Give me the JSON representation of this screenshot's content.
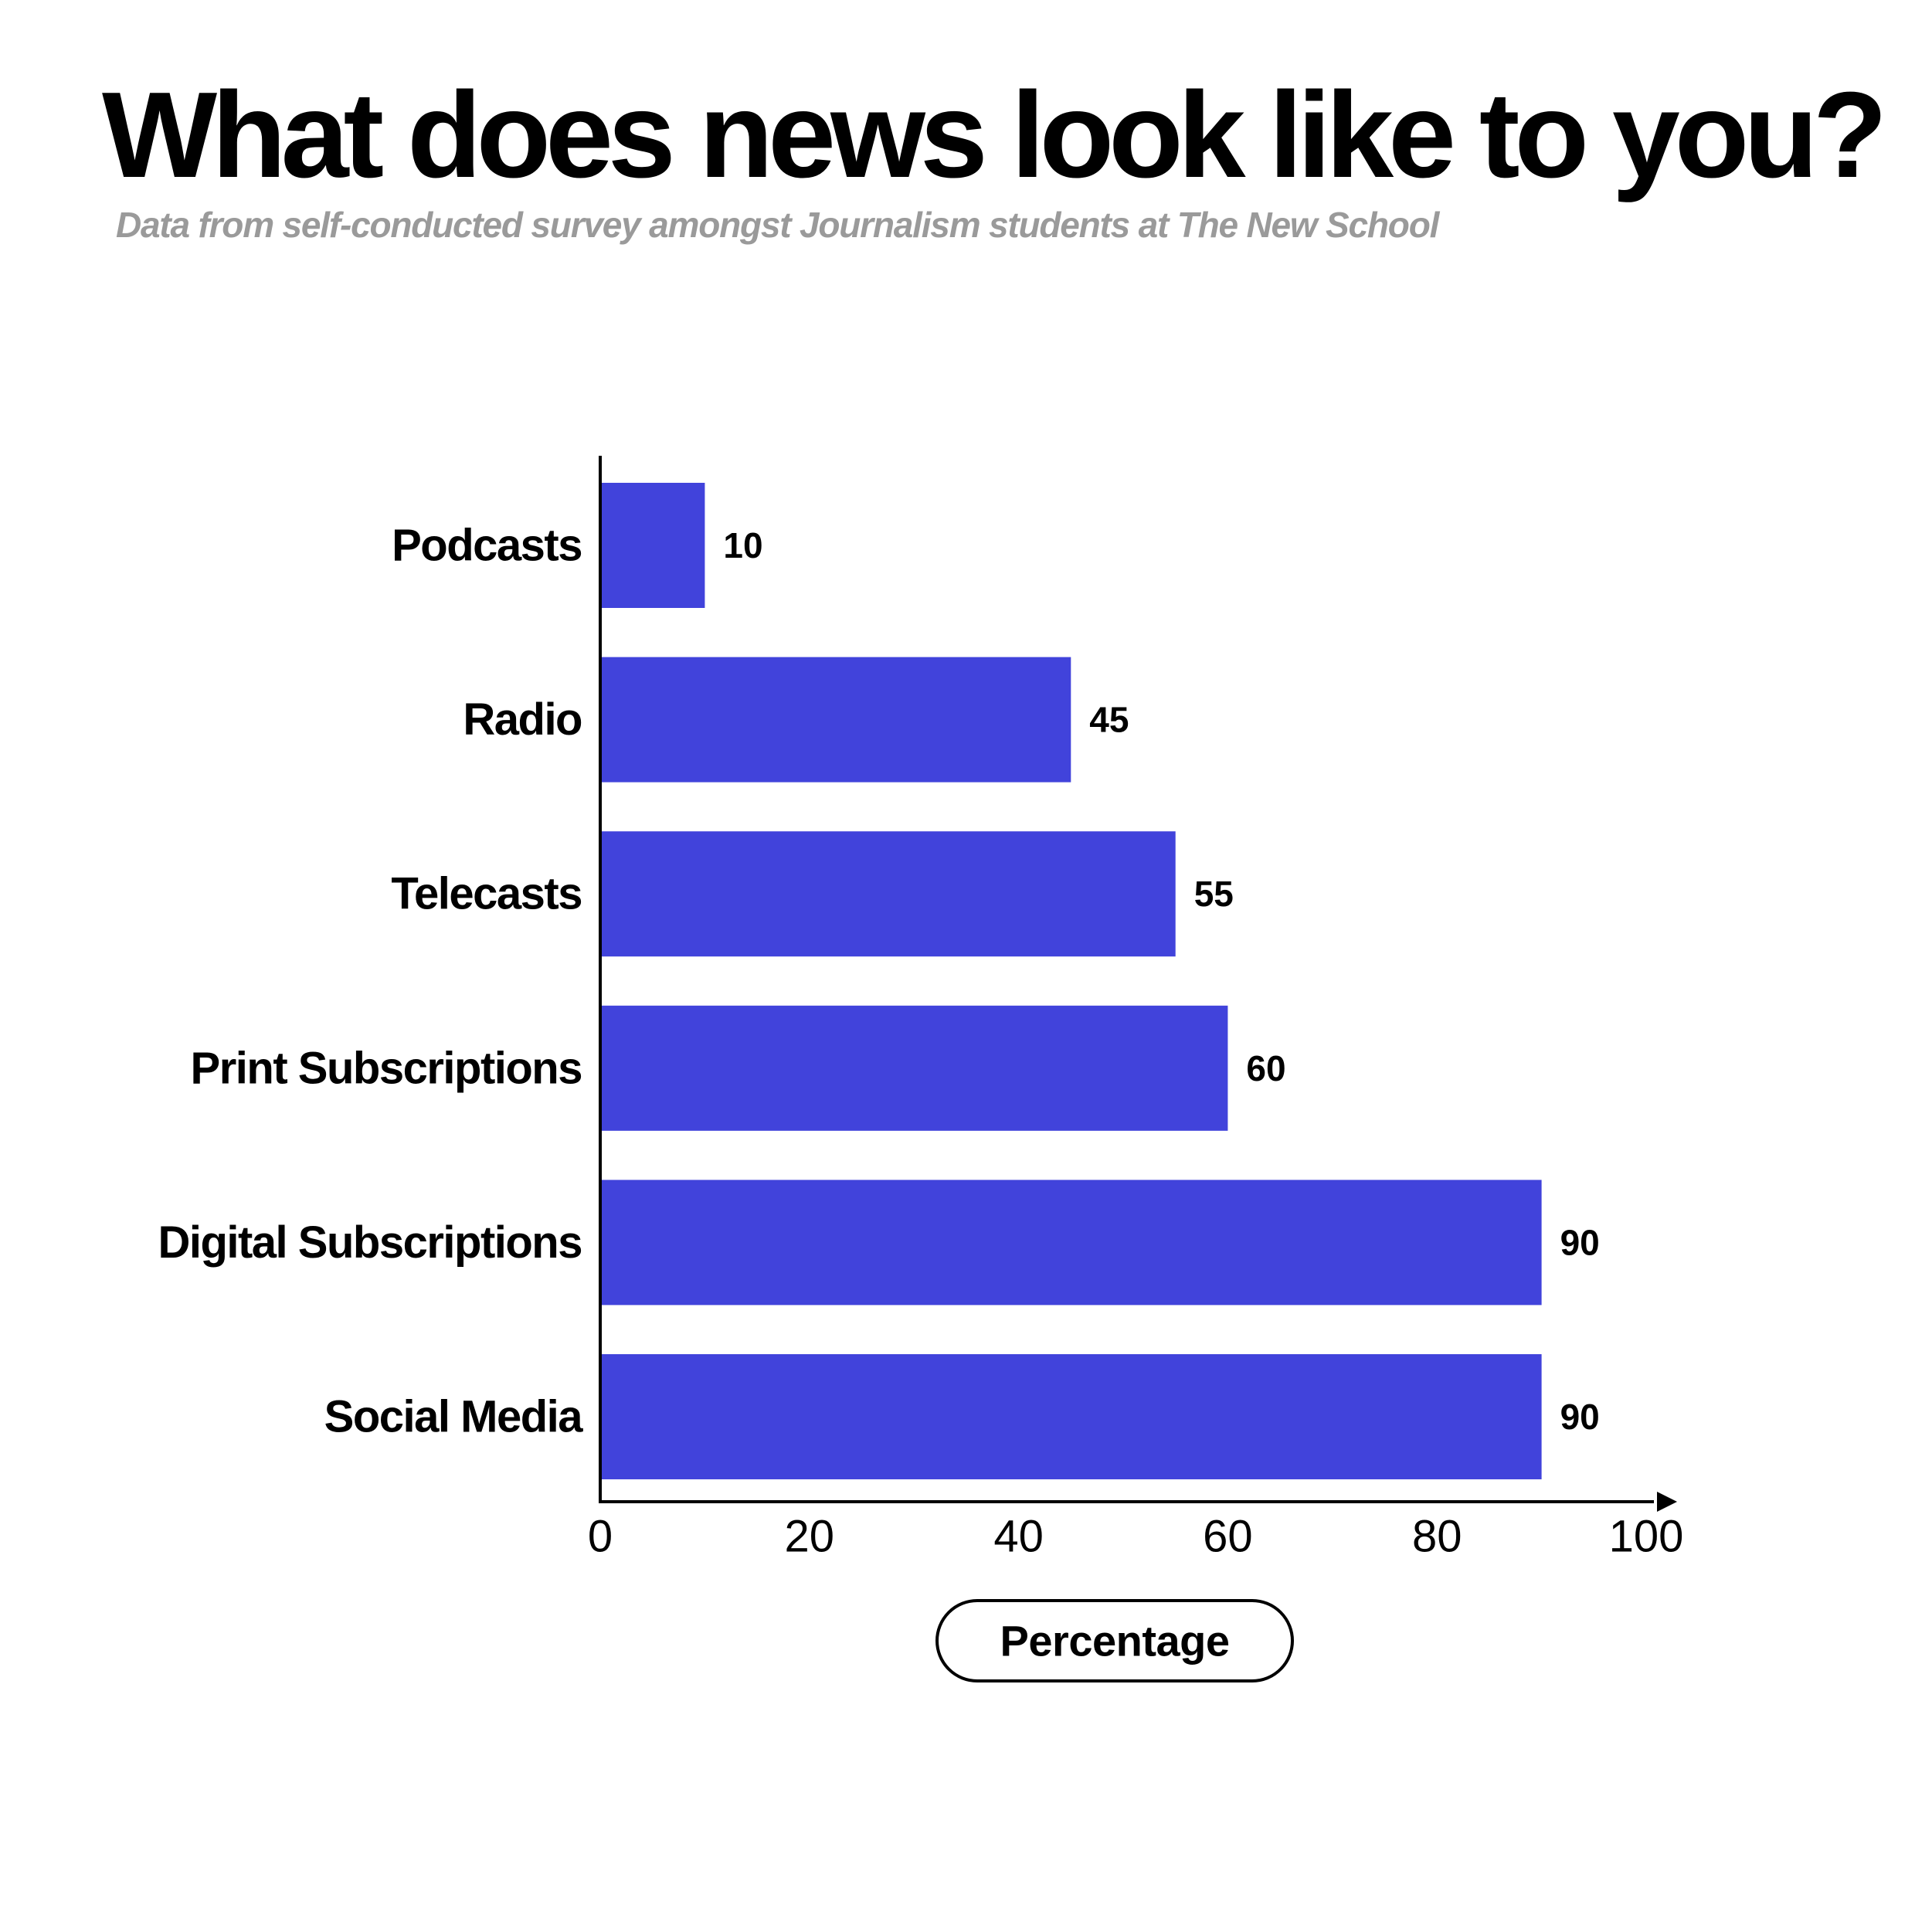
{
  "chart_data": {
    "type": "bar",
    "orientation": "horizontal",
    "title": "What does news look like to you?",
    "subtitle": "Data from self-conducted survey amongst Journalism students at The New School",
    "categories": [
      "Podcasts",
      "Radio",
      "Telecasts",
      "Print Subscriptions",
      "Digital Subscriptions",
      "Social Media"
    ],
    "values": [
      10,
      45,
      55,
      60,
      90,
      90
    ],
    "value_labels": [
      "10",
      "45",
      "55",
      "60",
      "90",
      "90"
    ],
    "xlabel": "Percentage",
    "ylabel": "",
    "xlim": [
      0,
      100
    ],
    "xticks": [
      0,
      20,
      40,
      60,
      80,
      100
    ],
    "xtick_labels": [
      "0",
      "20",
      "40",
      "60",
      "80",
      "100"
    ],
    "grid": false,
    "bar_color": "#4143DB"
  }
}
